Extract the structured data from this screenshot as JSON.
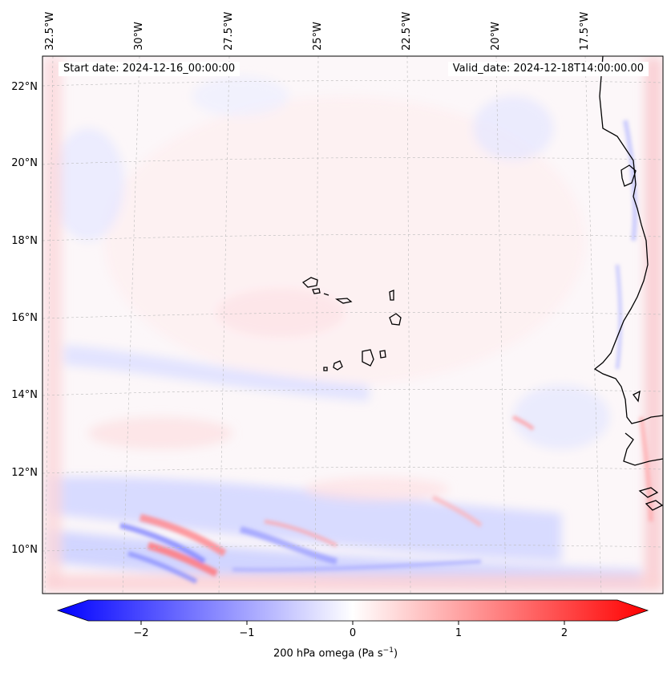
{
  "map": {
    "start_date": "Start date: 2024-12-16_00:00:00",
    "valid_date": "Valid_date: 2024-12-18T14:00:00.00",
    "lon_ticks": [
      "32.5°W",
      "30°W",
      "27.5°W",
      "25°W",
      "22.5°W",
      "20°W",
      "17.5°W"
    ],
    "lat_ticks": [
      "22°N",
      "20°N",
      "18°N",
      "16°N",
      "14°N",
      "12°N",
      "10°N"
    ],
    "lon_values": [
      -32.5,
      -30,
      -27.5,
      -25,
      -22.5,
      -20,
      -17.5
    ],
    "lat_values": [
      22,
      20,
      18,
      16,
      14,
      12,
      10
    ],
    "extent": {
      "lon_min": -32.75,
      "lon_max": -15.6,
      "lat_min": 8.9,
      "lat_max": 22.75
    }
  },
  "colorbar": {
    "label_prefix": "200 hPa omega (Pa s",
    "label_exp": "−1",
    "label_suffix": ")",
    "ticks": [
      "−2",
      "−1",
      "0",
      "1",
      "2"
    ],
    "tick_values": [
      -2,
      -1,
      0,
      1,
      2
    ],
    "vmin": -2.5,
    "vmax": 2.5,
    "cmap": "bwr",
    "colors": {
      "negative": "#0000ff",
      "zero": "#ffffff",
      "positive": "#ff0000"
    }
  }
}
